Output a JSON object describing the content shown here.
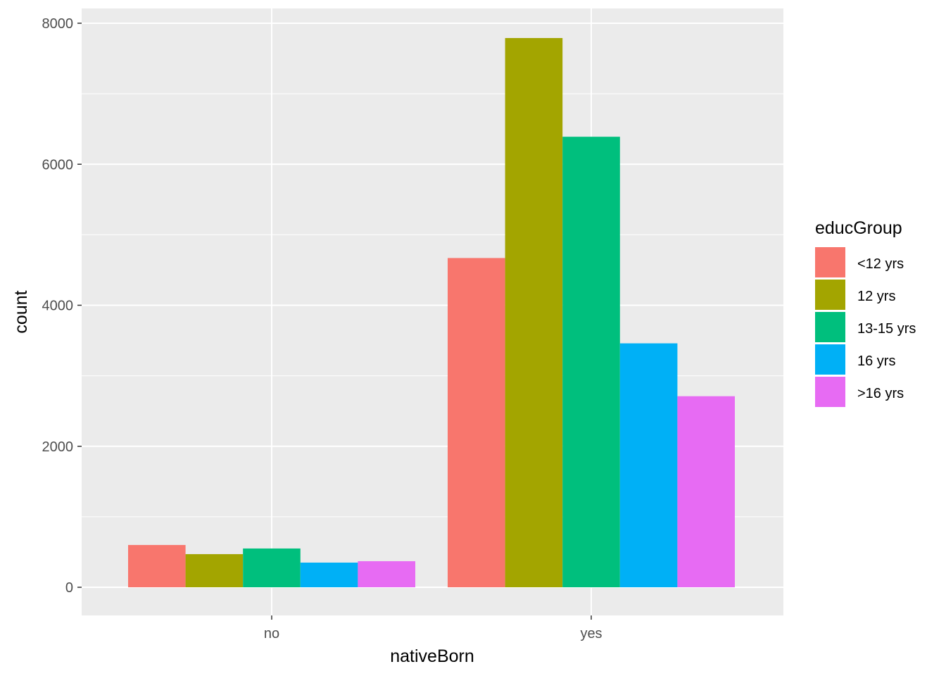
{
  "chart_data": {
    "type": "bar",
    "title": "",
    "xlabel": "nativeBorn",
    "ylabel": "count",
    "categories": [
      "no",
      "yes"
    ],
    "ylim": [
      -375,
      8200
    ],
    "yticks": [
      0,
      2000,
      4000,
      6000,
      8000
    ],
    "yticklabels": [
      "0",
      "2000",
      "4000",
      "6000",
      "8000"
    ],
    "grid": true,
    "legend": {
      "title": "educGroup",
      "placement": "right"
    },
    "series": [
      {
        "name": "<12 yrs",
        "color": "#F8766D",
        "values": [
          600,
          4670
        ]
      },
      {
        "name": "12 yrs",
        "color": "#A3A500",
        "values": [
          470,
          7790
        ]
      },
      {
        "name": "13-15 yrs",
        "color": "#00BF7D",
        "values": [
          550,
          6390
        ]
      },
      {
        "name": "16 yrs",
        "color": "#00B0F6",
        "values": [
          350,
          3460
        ]
      },
      {
        "name": ">16 yrs",
        "color": "#E76BF3",
        "values": [
          370,
          2710
        ]
      }
    ],
    "colors": {
      "panel": "#EBEBEB",
      "grid": "#FFFFFF",
      "tick": "#333333"
    }
  }
}
